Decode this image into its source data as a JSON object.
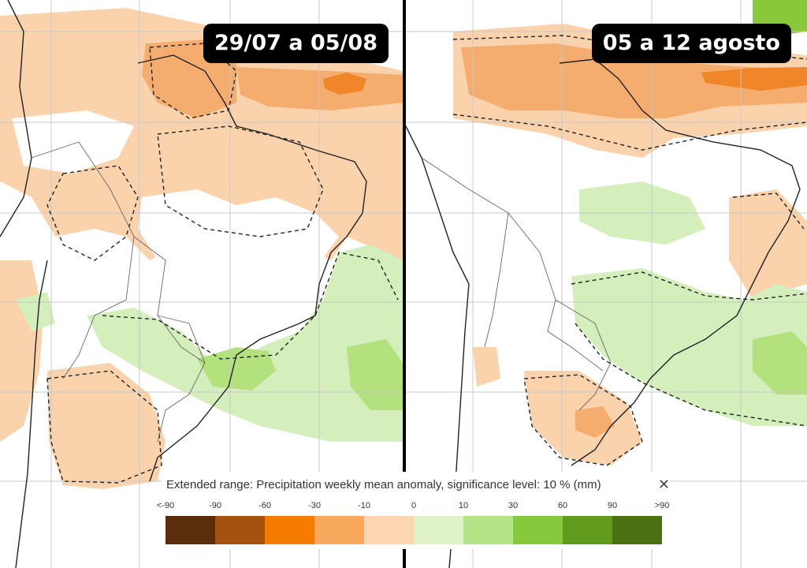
{
  "panels": [
    {
      "id": "left",
      "period_label": "29/07 a 05/08"
    },
    {
      "id": "right",
      "period_label": "05 a 12 agosto"
    }
  ],
  "legend": {
    "title": "Extended range: Precipitation weekly mean anomaly, significance level: 10 % (mm)",
    "close_symbol": "✕",
    "ticks": [
      "<-90",
      "-90",
      "-60",
      "-30",
      "-10",
      "0",
      "10",
      "30",
      "60",
      "90",
      ">90"
    ],
    "colors": [
      "#5a2e0a",
      "#a6520f",
      "#f57c00",
      "#f8a85c",
      "#fdd5b0",
      "#dff2c8",
      "#b4e388",
      "#86c93c",
      "#619b1e",
      "#4a7012"
    ]
  },
  "colors": {
    "dry_light": "#fad2ac",
    "dry_medium": "#f5ad6f",
    "dry_strong": "#f0852a",
    "wet_light": "#d4efbc",
    "wet_medium": "#b2e17e",
    "wet_strong": "#88c83a",
    "grid": "#c8c8c8",
    "coast": "#222222"
  }
}
